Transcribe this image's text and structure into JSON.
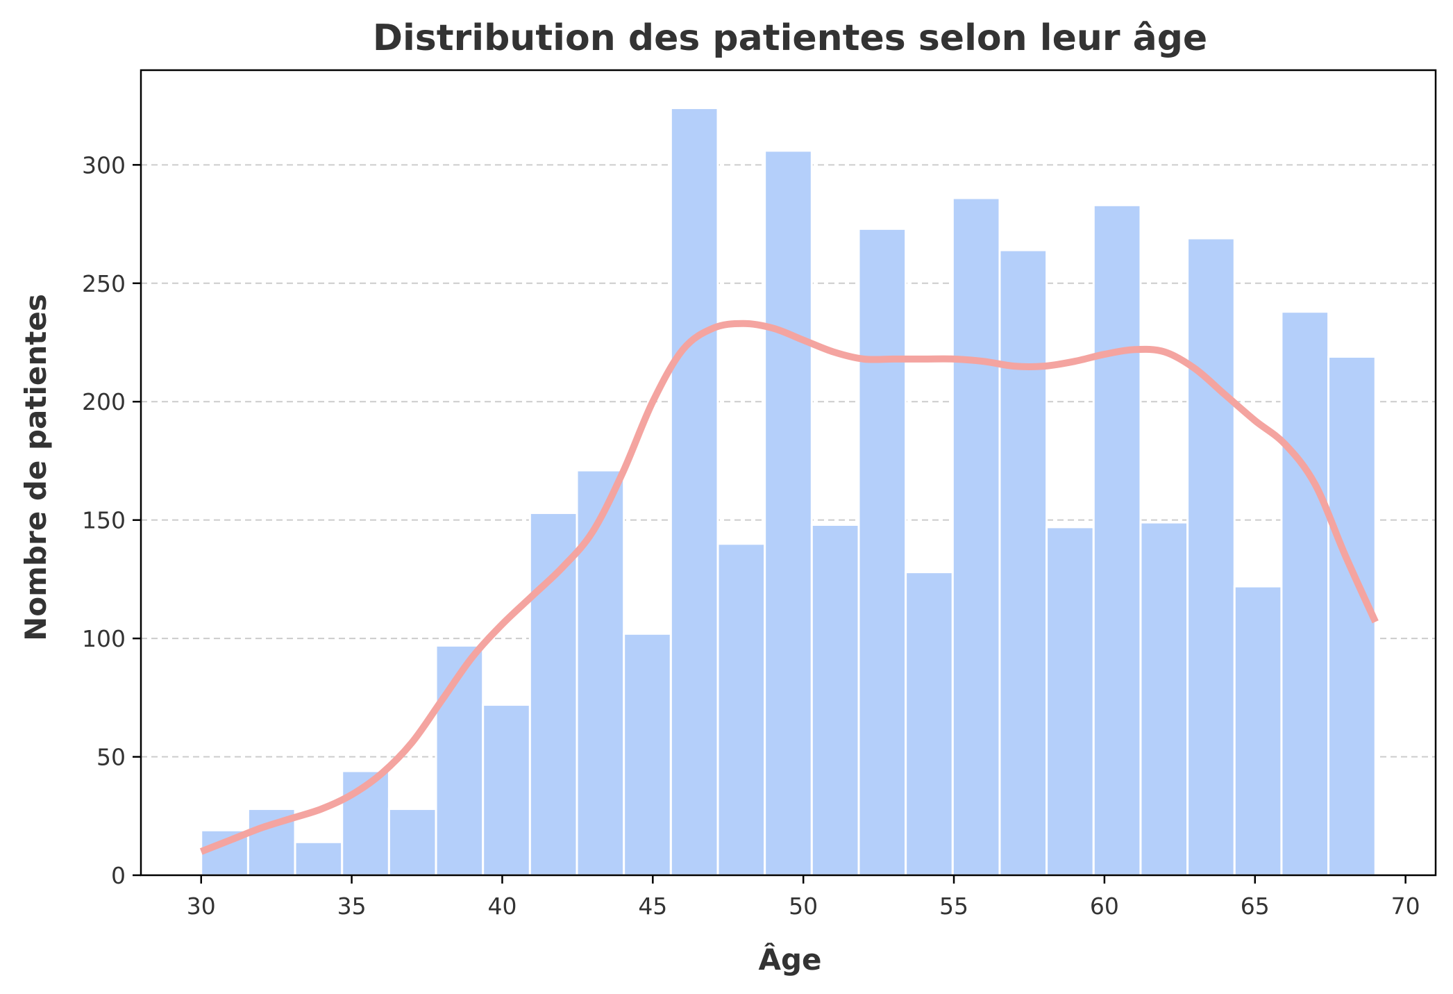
{
  "chart_data": {
    "type": "bar",
    "title": "Distribution des patientes selon leur âge",
    "xlabel": "Âge",
    "ylabel": "Nombre de patientes",
    "xlim": [
      28,
      71
    ],
    "ylim": [
      0,
      340
    ],
    "xticks": [
      30,
      35,
      40,
      45,
      50,
      55,
      60,
      65,
      70
    ],
    "yticks": [
      0,
      50,
      100,
      150,
      200,
      250,
      300
    ],
    "grid": "y-dashed",
    "bins": {
      "edges": [
        30,
        31.56,
        33.12,
        34.68,
        36.24,
        37.8,
        39.36,
        40.92,
        42.48,
        44.04,
        45.6,
        47.16,
        48.72,
        50.28,
        51.84,
        53.4,
        54.96,
        56.52,
        58.08,
        59.64,
        61.2,
        62.76,
        64.32,
        65.88,
        67.44,
        69.0
      ],
      "counts": [
        19,
        28,
        14,
        44,
        28,
        97,
        72,
        153,
        171,
        102,
        324,
        140,
        306,
        148,
        273,
        128,
        286,
        264,
        147,
        283,
        149,
        269,
        122,
        238,
        219
      ]
    },
    "kde": {
      "x": [
        30,
        31,
        32,
        33,
        34,
        35,
        36,
        37,
        38,
        39,
        40,
        41,
        42,
        43,
        44,
        45,
        46,
        47,
        48,
        49,
        50,
        51,
        52,
        53,
        54,
        55,
        56,
        57,
        58,
        59,
        60,
        61,
        62,
        63,
        64,
        65,
        66,
        67,
        68,
        69
      ],
      "y": [
        10,
        15,
        20,
        24,
        28,
        34,
        43,
        56,
        74,
        92,
        106,
        118,
        130,
        145,
        170,
        200,
        222,
        231,
        233,
        231,
        226,
        221,
        218,
        218,
        218,
        218,
        217,
        215,
        215,
        217,
        220,
        222,
        221,
        214,
        203,
        192,
        182,
        165,
        135,
        107
      ]
    },
    "colors": {
      "bars": "#b4cffa",
      "kde": "#f4a4a0",
      "grid": "#cccccc",
      "text": "#333333"
    }
  }
}
